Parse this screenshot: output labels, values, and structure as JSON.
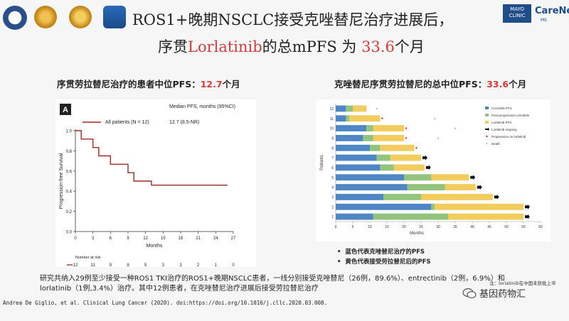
{
  "header": {
    "title_line1": "ROS1+晚期NSCLC接受克唑替尼治疗进展后，",
    "title_line2_pre": "序贯",
    "title_line2_drug": "Lorlatinib",
    "title_line2_mid": "的总mPFS 为",
    "title_line2_value": "33.6",
    "title_line2_post": "个月",
    "mayo_text": "MAYO CLINIC",
    "care_text": "CareNetw",
    "care_sub": "MS"
  },
  "left": {
    "subtitle_pre": "序贯劳拉替尼治疗的患者中位PFS：",
    "subtitle_value": "12.7",
    "subtitle_post": "个月"
  },
  "right": {
    "subtitle_pre": "克唑替尼序贯劳拉替尼的总中位PFS：",
    "subtitle_value": "33.6",
    "subtitle_post": "个月",
    "legend_blue": "蓝色代表克唑替尼治疗的PFS",
    "legend_yellow": "黄色代表接受劳拉替尼后的PFS"
  },
  "footer": {
    "body": "研究共纳入29例至少接受一种ROS1 TKI治疗的ROS1+晚期NSCLC患者，一线分别接受克唑替尼（26例，89.6%）、entrectinib（2例，6.9%）和lorlatinib（1例,3.4%）治疗。其中12例患者，在克唑替尼治疗进展后接受劳拉替尼治疗",
    "reference": "Andrea De Giglio, et al. Clinical Lung Cancer (2020). doi:https://doi.org/10.1016/j.cllc.2020.03.008.",
    "watermark_right": "注：lorlatinib在中国未获批上市",
    "wechat_name": "基因药物汇"
  },
  "chart_data": [
    {
      "type": "line",
      "panel_label": "A",
      "title": "Median PFS, months (95%CI)",
      "series": [
        {
          "name": "All patients (N = 12)",
          "value_label": "12.7 (8.5-NR)",
          "color": "#a0282a",
          "x": [
            0,
            1,
            1,
            3,
            3,
            4,
            4,
            6,
            6,
            9,
            9,
            10,
            10,
            11,
            11,
            13,
            13,
            26
          ],
          "y": [
            1.0,
            1.0,
            0.917,
            0.917,
            0.833,
            0.833,
            0.75,
            0.75,
            0.667,
            0.667,
            0.583,
            0.583,
            0.5,
            0.5,
            0.5,
            0.5,
            0.46,
            0.46
          ]
        }
      ],
      "xlabel": "Months",
      "ylabel": "Progression-free Survival",
      "xlim": [
        0,
        27
      ],
      "ylim": [
        0,
        1.0
      ],
      "xticks": [
        0,
        3,
        6,
        9,
        12,
        15,
        18,
        21,
        24,
        27
      ],
      "yticks": [
        "0.0",
        "0.2",
        "0.4",
        "0.6",
        "0.8",
        "1.0"
      ],
      "risk_title": "Number at risk",
      "risk_values": [
        "12",
        "11",
        "9",
        "8",
        "5",
        "3",
        "3",
        "2",
        "1",
        "0"
      ]
    },
    {
      "type": "bar",
      "orientation": "horizontal",
      "stacked": true,
      "categories": [
        "1",
        "2",
        "3",
        "4",
        "5",
        "6",
        "7",
        "8",
        "9",
        "10",
        "11",
        "12"
      ],
      "series": [
        {
          "name": "Crizotinib PFS",
          "color": "#4f86c6",
          "values": [
            11,
            28,
            14,
            21,
            20,
            13,
            12,
            10,
            8,
            9,
            3,
            3
          ]
        },
        {
          "name": "Post-progression crizotinib",
          "color": "#93c47d",
          "values": [
            22,
            1,
            11,
            11,
            8,
            4,
            4,
            3,
            3,
            2,
            1,
            2
          ]
        },
        {
          "name": "Lorlatinib PFS",
          "color": "#f2cc5c",
          "values": [
            22,
            26,
            21,
            9,
            11,
            9,
            9,
            10,
            9,
            9,
            9,
            4
          ]
        }
      ],
      "ongoing_rows": [
        "1",
        "2",
        "3",
        "4",
        "5",
        "6",
        "7"
      ],
      "progression_rows": [
        "8",
        "9",
        "10",
        "11"
      ],
      "death_points": [
        {
          "patient": "9",
          "month": 30
        },
        {
          "patient": "10",
          "month": 35
        },
        {
          "patient": "11",
          "month": 29
        },
        {
          "patient": "12",
          "month": 12
        }
      ],
      "legend": [
        "Crizotinib PFS",
        "Post-progression crizotinib",
        "Lorlatinib PFS",
        "Lorlatinib ongoing",
        "Progression on lorlatinib",
        "Death"
      ],
      "xlabel": "Months",
      "ylabel": "Patients",
      "xlim": [
        0,
        60
      ],
      "xticks": [
        0,
        5,
        10,
        15,
        20,
        25,
        30,
        35,
        40,
        45,
        50,
        55,
        60
      ]
    }
  ]
}
